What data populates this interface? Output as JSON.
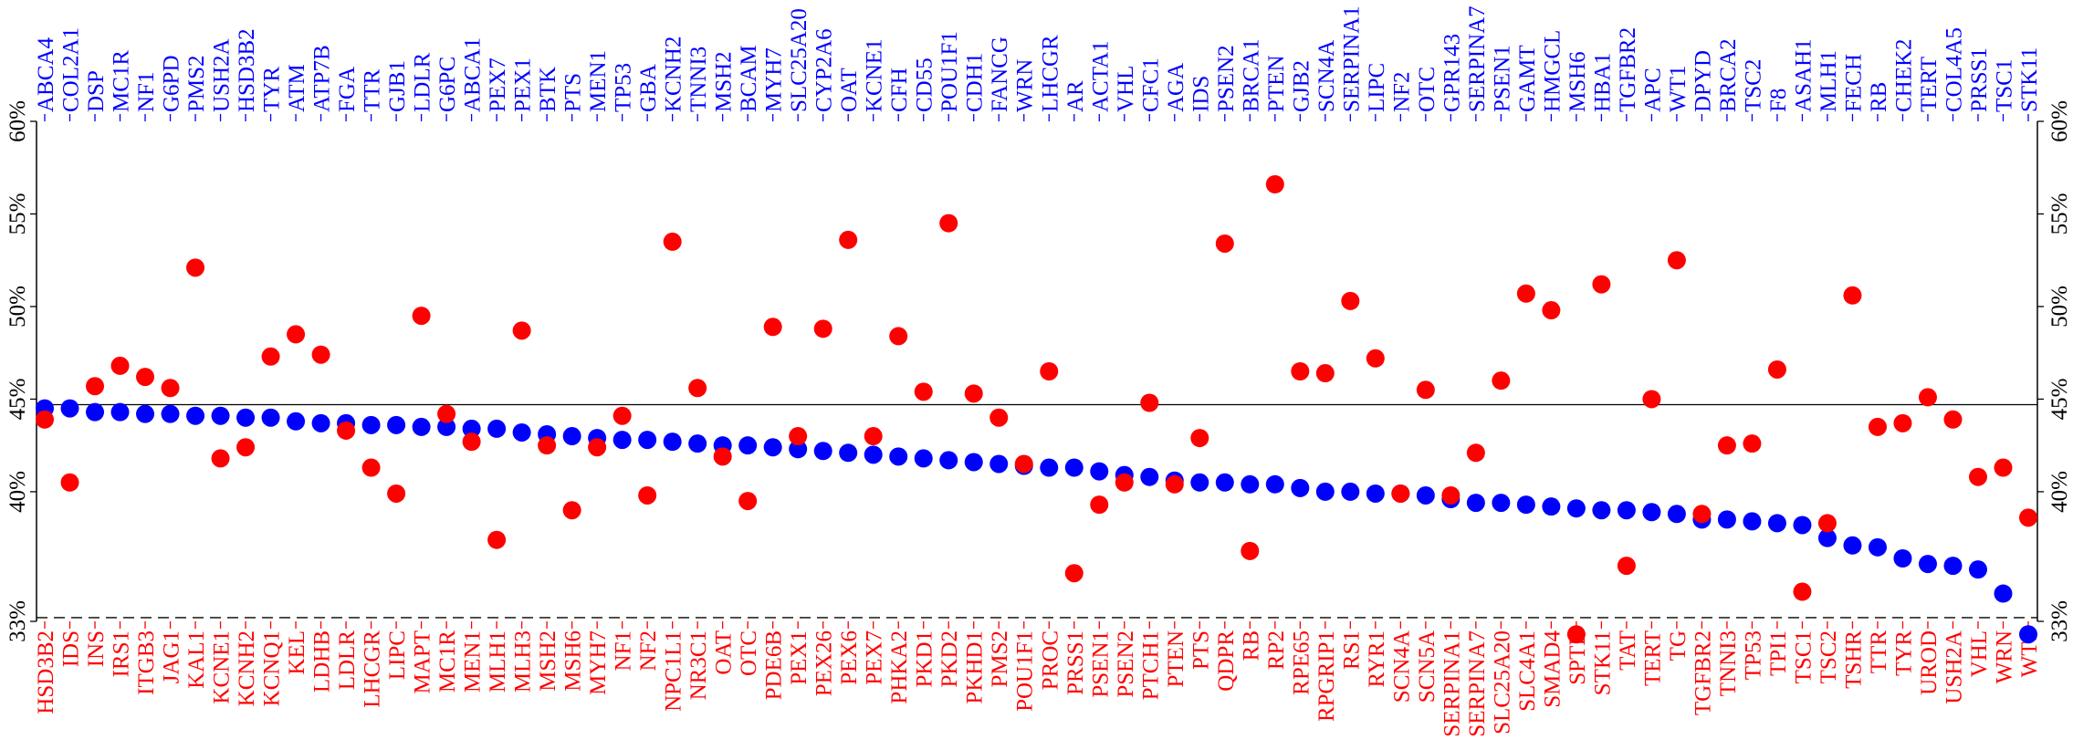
{
  "chart_data": {
    "type": "scatter",
    "ylim": [
      33,
      60
    ],
    "y_ticks": [
      33,
      40,
      45,
      50,
      55,
      60
    ],
    "y_tick_suffix": "%",
    "grid": false,
    "reference_lines": [
      {
        "value": 44.7,
        "style": "solid"
      },
      {
        "value": 33.2,
        "style": "dashed"
      }
    ],
    "colors": {
      "blue": "#0000ff",
      "red": "#ff0000"
    },
    "series": [
      {
        "color": "blue",
        "labels_position": "top",
        "labels": [
          "ABCA4",
          "COL2A1",
          "DSP",
          "MC1R",
          "NF1",
          "G6PD",
          "PMS2",
          "USH2A",
          "HSD3B2",
          "TYR",
          "ATM",
          "ATP7B",
          "FGA",
          "TTR",
          "GJB1",
          "LDLR",
          "G6PC",
          "ABCA1",
          "PEX7",
          "PEX1",
          "BTK",
          "PTS",
          "MEN1",
          "TP53",
          "GBA",
          "KCNH2",
          "TNNI3",
          "MSH2",
          "BCAM",
          "MYH7",
          "SLC25A20",
          "CYP2A6",
          "OAT",
          "KCNE1",
          "CFH",
          "CD55",
          "POU1F1",
          "CDH1",
          "FANCG",
          "WRN",
          "LHCGR",
          "AR",
          "ACTA1",
          "VHL",
          "CFC1",
          "AGA",
          "IDS",
          "PSEN2",
          "BRCA1",
          "PTEN",
          "GJB2",
          "SCN4A",
          "SERPINA1",
          "LIPC",
          "NF2",
          "OTC",
          "GPR143",
          "SERPINA7",
          "PSEN1",
          "GAMT",
          "HMGCL",
          "MSH6",
          "HBA1",
          "TGFBR2",
          "APC",
          "WT1",
          "DPYD",
          "BRCA2",
          "TSC2",
          "F8",
          "ASAH1",
          "MLH1",
          "FECH",
          "RB",
          "CHEK2",
          "TERT",
          "COL4A5",
          "PRSS1",
          "TSC1",
          "STK11"
        ],
        "values": [
          44.5,
          44.5,
          44.3,
          44.3,
          44.2,
          44.2,
          44.1,
          44.1,
          44.0,
          44.0,
          43.8,
          43.7,
          43.7,
          43.6,
          43.6,
          43.5,
          43.5,
          43.4,
          43.4,
          43.2,
          43.1,
          43.0,
          42.9,
          42.8,
          42.8,
          42.7,
          42.6,
          42.5,
          42.5,
          42.4,
          42.3,
          42.2,
          42.1,
          42.0,
          41.9,
          41.8,
          41.7,
          41.6,
          41.5,
          41.4,
          41.3,
          41.3,
          41.1,
          40.9,
          40.8,
          40.6,
          40.5,
          40.5,
          40.4,
          40.4,
          40.2,
          40.0,
          40.0,
          39.9,
          39.9,
          39.8,
          39.6,
          39.4,
          39.4,
          39.3,
          39.2,
          39.1,
          39.0,
          39.0,
          38.9,
          38.8,
          38.5,
          38.5,
          38.4,
          38.3,
          38.2,
          37.5,
          37.1,
          37.0,
          36.4,
          36.1,
          36.0,
          35.8,
          34.5,
          32.3
        ]
      },
      {
        "color": "red",
        "labels_position": "bottom",
        "labels": [
          "HSD3B2",
          "IDS",
          "INS",
          "IRS1",
          "ITGB3",
          "JAG1",
          "KAL1",
          "KCNE1",
          "KCNH2",
          "KCNQ1",
          "KEL",
          "LDHB",
          "LDLR",
          "LHCGR",
          "LIPC",
          "MAPT",
          "MC1R",
          "MEN1",
          "MLH1",
          "MLH3",
          "MSH2",
          "MSH6",
          "MYH7",
          "NF1",
          "NF2",
          "NPC1L1",
          "NR3C1",
          "OAT",
          "OTC",
          "PDE6B",
          "PEX1",
          "PEX26",
          "PEX6",
          "PEX7",
          "PHKA2",
          "PKD1",
          "PKD2",
          "PKHD1",
          "PMS2",
          "POU1F1",
          "PROC",
          "PRSS1",
          "PSEN1",
          "PSEN2",
          "PTCH1",
          "PTEN",
          "PTS",
          "QDPR",
          "RB",
          "RP2",
          "RPE65",
          "RPGRIP1",
          "RS1",
          "RYR1",
          "SCN4A",
          "SCN5A",
          "SERPINA1",
          "SERPINA7",
          "SLC25A20",
          "SLC4A1",
          "SMAD4",
          "SPTB",
          "STK11",
          "TAT",
          "TERT",
          "TG",
          "TGFBR2",
          "TNNI3",
          "TP53",
          "TPI1",
          "TSC1",
          "TSC2",
          "TSHR",
          "TTR",
          "TYR",
          "UROD",
          "USH2A",
          "VHL",
          "WRN",
          "WT1"
        ],
        "values": [
          43.9,
          40.5,
          45.7,
          46.8,
          46.2,
          45.6,
          52.1,
          41.8,
          42.4,
          47.3,
          48.5,
          47.4,
          43.3,
          41.3,
          39.9,
          49.5,
          44.2,
          42.7,
          37.4,
          48.7,
          42.5,
          39.0,
          42.4,
          44.1,
          39.8,
          53.5,
          45.6,
          41.9,
          39.5,
          48.9,
          43.0,
          48.8,
          53.6,
          43.0,
          48.4,
          45.4,
          54.5,
          45.3,
          44.0,
          41.5,
          46.5,
          35.6,
          39.3,
          40.5,
          44.8,
          40.4,
          42.9,
          53.4,
          36.8,
          56.6,
          46.5,
          46.4,
          50.3,
          47.2,
          39.9,
          45.5,
          39.8,
          42.1,
          46.0,
          50.7,
          49.8,
          32.3,
          51.2,
          36.0,
          45.0,
          52.5,
          38.8,
          42.5,
          42.6,
          46.6,
          34.6,
          38.3,
          50.6,
          43.5,
          43.7,
          45.1,
          43.9,
          40.8,
          41.3,
          38.6
        ]
      }
    ]
  }
}
